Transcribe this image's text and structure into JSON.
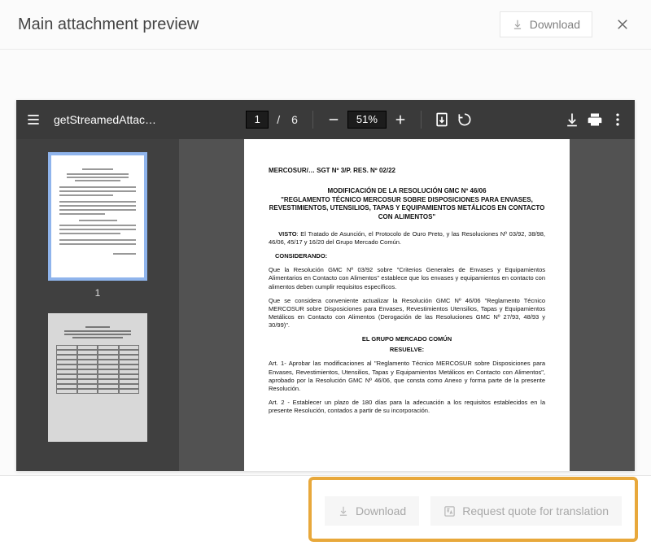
{
  "header": {
    "title": "Main attachment preview",
    "download_label": "Download"
  },
  "pdf_toolbar": {
    "filename": "getStreamedAttac…",
    "current_page": "1",
    "page_sep": "/",
    "total_pages": "6",
    "zoom": "51%"
  },
  "thumbnails": {
    "label_1": "1"
  },
  "document": {
    "header_line": "MERCOSUR/… SGT Nº 3/P. RES. Nº 02/22",
    "title_l1": "MODIFICACIÓN DE LA RESOLUCIÓN GMC Nº 46/06",
    "title_l2": "\"REGLAMENTO TÉCNICO MERCOSUR SOBRE DISPOSICIONES PARA ENVASES, REVESTIMIENTOS, UTENSILIOS, TAPAS Y EQUIPAMIENTOS METÁLICOS EN CONTACTO CON ALIMENTOS\"",
    "visto": "VISTO: El Tratado de Asunción, el Protocolo de Ouro Preto, y las Resoluciones Nº 03/92, 38/98, 46/06, 45/17 y 16/20 del Grupo Mercado Común.",
    "considerando_head": "CONSIDERANDO:",
    "cons_p1": "Que la Resolución GMC Nº 03/92 sobre \"Criterios Generales de Envases y Equipamientos Alimentarios en Contacto con Alimentos\" establece que los envases y equipamientos en contacto con alimentos deben cumplir requisitos específicos.",
    "cons_p2": "Que se considera conveniente actualizar la Resolución GMC Nº 46/06 \"Reglamento Técnico MERCOSUR sobre Disposiciones para Envases, Revestimientos Utensilios, Tapas y Equipamientos Metálicos en Contacto con Alimentos (Derogación de las Resoluciones GMC Nº 27/93, 48/93 y 30/99)\".",
    "resuelve_head1": "EL GRUPO MERCADO COMÚN",
    "resuelve_head2": "RESUELVE:",
    "art1": "Art. 1- Aprobar las modificaciones al \"Reglamento Técnico MERCOSUR sobre Disposiciones para Envases, Revestimientos, Utensilios, Tapas y Equipamientos Metálicos en Contacto con Alimentos\", aprobado por la Resolución GMC Nº 46/06, que consta como Anexo y forma parte de la presente Resolución.",
    "art2": "Art. 2 - Establecer un plazo de 180 días para la adecuación a los requisitos establecidos en la presente Resolución, contados a partir de su incorporación."
  },
  "footer": {
    "download_label": "Download",
    "quote_label": "Request quote for translation"
  },
  "colors": {
    "highlight_border": "#e8a83b",
    "pdf_toolbar_bg": "#3a3a3a",
    "thumb_active_border": "#8fb4ec"
  }
}
